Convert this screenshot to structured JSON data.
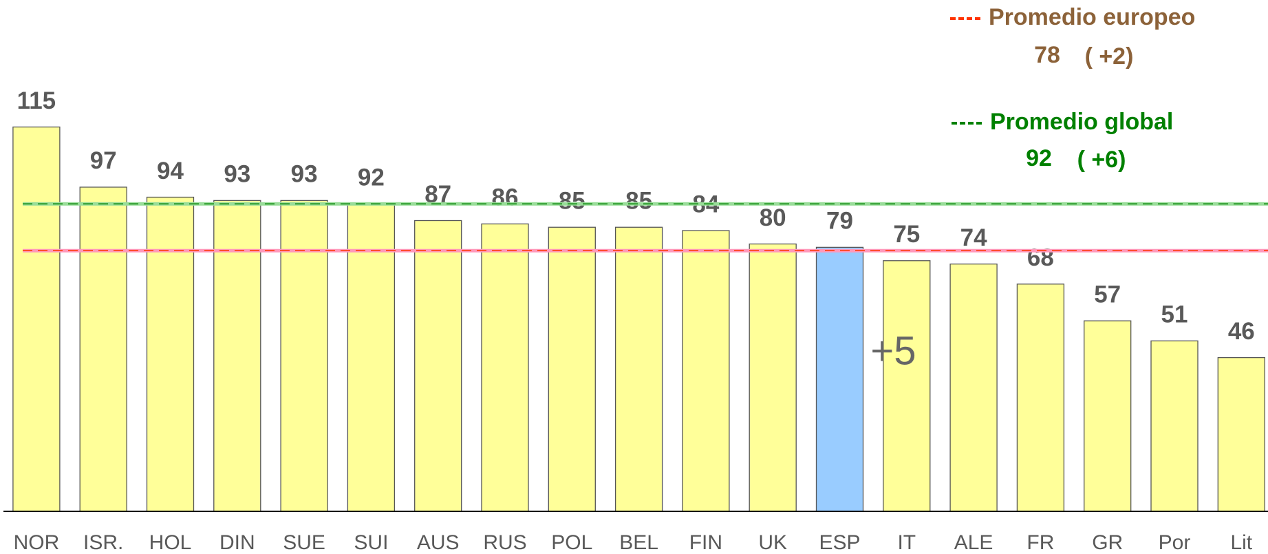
{
  "chart_data": {
    "type": "bar",
    "categories": [
      "NOR",
      "ISR.",
      "HOL",
      "DIN",
      "SUE",
      "SUI",
      "AUS",
      "RUS",
      "POL",
      "BEL",
      "FIN",
      "UK",
      "ESP",
      "IT",
      "ALE",
      "FR",
      "GR",
      "Por",
      "Lit"
    ],
    "values": [
      115,
      97,
      94,
      93,
      93,
      92,
      87,
      86,
      85,
      85,
      84,
      80,
      79,
      75,
      74,
      68,
      57,
      51,
      46
    ],
    "color": "#ffff99",
    "highlight": {
      "category": "ESP",
      "color": "#99ccff"
    },
    "ylim": [
      0,
      153
    ],
    "reference_lines": [
      {
        "name": "Promedio europeo",
        "value": 78,
        "change_label": "( +2)",
        "color": "#ff3300",
        "text_color": "#8c6239",
        "line_color": "#ff99bb"
      },
      {
        "name": "Promedio global",
        "value": 92,
        "change_label": "( +6)",
        "color": "#008000",
        "text_color": "#008000",
        "line_color": "#99dd99"
      }
    ],
    "annotations": [
      {
        "text": "+5",
        "category": "ESP"
      }
    ]
  }
}
